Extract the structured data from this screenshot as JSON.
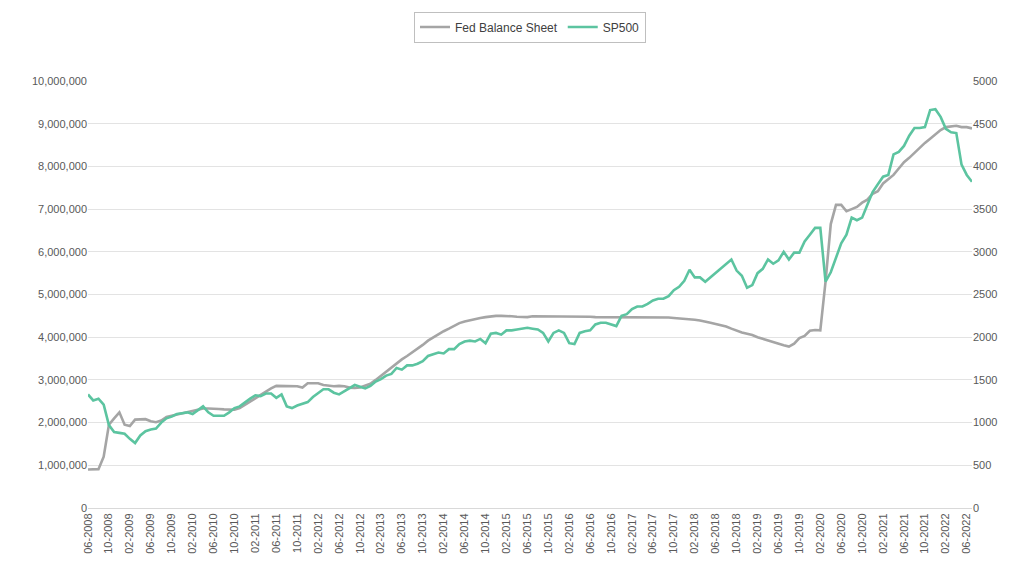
{
  "chart_data": {
    "type": "line",
    "categories": [
      "06-2008",
      null,
      null,
      null,
      "10-2008",
      null,
      null,
      null,
      "02-2009",
      null,
      null,
      null,
      "06-2009",
      null,
      null,
      null,
      "10-2009",
      null,
      null,
      null,
      "02-2010",
      null,
      null,
      null,
      "06-2010",
      null,
      null,
      null,
      "10-2010",
      null,
      null,
      null,
      "02-2011",
      null,
      null,
      null,
      "06-2011",
      null,
      null,
      null,
      "10-2011",
      null,
      null,
      null,
      "02-2012",
      null,
      null,
      null,
      "06-2012",
      null,
      null,
      null,
      "10-2012",
      null,
      null,
      null,
      "02-2013",
      null,
      null,
      null,
      "06-2013",
      null,
      null,
      null,
      "10-2013",
      null,
      null,
      null,
      "02-2014",
      null,
      null,
      null,
      "06-2014",
      null,
      null,
      null,
      "10-2014",
      null,
      null,
      null,
      "02-2015",
      null,
      null,
      null,
      "06-2015",
      null,
      null,
      null,
      "10-2015",
      null,
      null,
      null,
      "02-2016",
      null,
      null,
      null,
      "06-2016",
      null,
      null,
      null,
      "10-2016",
      null,
      null,
      null,
      "02-2017",
      null,
      null,
      null,
      "06-2017",
      null,
      null,
      null,
      "10-2017",
      null,
      null,
      null,
      "02-2018",
      null,
      null,
      null,
      "06-2018",
      null,
      null,
      null,
      "10-2018",
      null,
      null,
      null,
      "02-2019",
      null,
      null,
      null,
      "06-2019",
      null,
      null,
      null,
      "10-2019",
      null,
      null,
      null,
      "02-2020",
      null,
      null,
      null,
      "06-2020",
      null,
      null,
      null,
      "10-2020",
      null,
      null,
      null,
      "02-2021",
      null,
      null,
      null,
      "06-2021",
      null,
      null,
      null,
      "10-2021",
      null,
      null,
      null,
      "02-2022",
      null,
      null,
      null,
      "06-2022",
      null
    ],
    "series": [
      {
        "name": "Fed Balance Sheet",
        "color": "#a5a5a5",
        "values": [
          900000,
          910000,
          910000,
          1200000,
          1950000,
          2100000,
          2240000,
          1950000,
          1920000,
          2070000,
          2070000,
          2080000,
          2030000,
          2010000,
          2050000,
          2130000,
          2160000,
          2190000,
          2220000,
          2240000,
          2270000,
          2300000,
          2330000,
          2330000,
          2330000,
          2320000,
          2310000,
          2300000,
          2300000,
          2340000,
          2420000,
          2480000,
          2570000,
          2650000,
          2730000,
          2800000,
          2860000,
          2860000,
          2850000,
          2850000,
          2850000,
          2820000,
          2920000,
          2920000,
          2920000,
          2880000,
          2870000,
          2850000,
          2860000,
          2850000,
          2820000,
          2810000,
          2820000,
          2860000,
          2910000,
          3000000,
          3100000,
          3200000,
          3300000,
          3400000,
          3480000,
          3560000,
          3640000,
          3720000,
          3820000,
          3920000,
          4000000,
          4070000,
          4140000,
          4200000,
          4270000,
          4330000,
          4370000,
          4400000,
          4430000,
          4450000,
          4470000,
          4490000,
          4500000,
          4500000,
          4500000,
          4490000,
          4480000,
          4470000,
          4470000,
          4490000,
          4490000,
          4480000,
          4480000,
          4490000,
          4490000,
          4480000,
          4480000,
          4480000,
          4480000,
          4480000,
          4480000,
          4470000,
          4470000,
          4470000,
          4460000,
          4460000,
          4460000,
          4460000,
          4460000,
          4460000,
          4460000,
          4460000,
          4460000,
          4460000,
          4460000,
          4460000,
          4450000,
          4440000,
          4440000,
          4430000,
          4410000,
          4390000,
          4370000,
          4340000,
          4310000,
          4280000,
          4250000,
          4200000,
          4150000,
          4110000,
          4080000,
          4050000,
          4000000,
          3960000,
          3930000,
          3880000,
          3850000,
          3810000,
          3780000,
          3850000,
          3980000,
          4030000,
          4150000,
          4170000,
          4160000,
          5300000,
          6650000,
          7100000,
          7100000,
          6950000,
          7000000,
          7050000,
          7150000,
          7220000,
          7360000,
          7420000,
          7600000,
          7700000,
          7800000,
          7950000,
          8100000,
          8200000,
          8320000,
          8420000,
          8550000,
          8650000,
          8750000,
          8850000,
          8920000,
          8940000,
          8950000,
          8920000,
          8920000,
          8890000
        ]
      },
      {
        "name": "SP500",
        "color": "#5cc4a0",
        "axis": "y2",
        "values": [
          1330,
          1260,
          1280,
          1210,
          970,
          890,
          880,
          870,
          810,
          760,
          850,
          900,
          920,
          930,
          1000,
          1050,
          1070,
          1100,
          1110,
          1120,
          1100,
          1150,
          1190,
          1120,
          1080,
          1080,
          1080,
          1120,
          1170,
          1190,
          1240,
          1280,
          1320,
          1310,
          1340,
          1340,
          1290,
          1330,
          1190,
          1170,
          1200,
          1220,
          1240,
          1300,
          1350,
          1390,
          1390,
          1350,
          1330,
          1370,
          1400,
          1440,
          1420,
          1400,
          1430,
          1480,
          1510,
          1550,
          1570,
          1640,
          1620,
          1670,
          1670,
          1690,
          1720,
          1780,
          1800,
          1820,
          1810,
          1860,
          1860,
          1920,
          1950,
          1960,
          1950,
          1980,
          1930,
          2040,
          2050,
          2030,
          2080,
          2080,
          2090,
          2100,
          2110,
          2100,
          2090,
          2050,
          1950,
          2050,
          2080,
          2050,
          1930,
          1920,
          2050,
          2070,
          2080,
          2150,
          2170,
          2170,
          2150,
          2130,
          2250,
          2270,
          2330,
          2360,
          2360,
          2390,
          2430,
          2450,
          2450,
          2480,
          2550,
          2590,
          2660,
          2790,
          2700,
          2700,
          2650,
          2700,
          2750,
          2800,
          2860,
          2910,
          2780,
          2720,
          2580,
          2610,
          2750,
          2800,
          2910,
          2860,
          2900,
          3000,
          2910,
          2990,
          2990,
          3120,
          3200,
          3280,
          3280,
          2650,
          2760,
          2930,
          3100,
          3200,
          3400,
          3370,
          3400,
          3550,
          3700,
          3790,
          3880,
          3900,
          4140,
          4170,
          4240,
          4360,
          4450,
          4450,
          4460,
          4660,
          4670,
          4580,
          4440,
          4400,
          4390,
          4020,
          3900,
          3820
        ]
      }
    ],
    "ylim": [
      0,
      10000000
    ],
    "yticks": [
      0,
      {
        "value": 1000000,
        "label": "1,000,000"
      },
      {
        "value": 2000000,
        "label": "2,000,000"
      },
      {
        "value": 3000000,
        "label": "3,000,000"
      },
      {
        "value": 4000000,
        "label": "4,000,000"
      },
      {
        "value": 5000000,
        "label": "5,000,000"
      },
      {
        "value": 6000000,
        "label": "6,000,000"
      },
      {
        "value": 7000000,
        "label": "7,000,000"
      },
      {
        "value": 8000000,
        "label": "8,000,000"
      },
      {
        "value": 9000000,
        "label": "9,000,000"
      },
      {
        "value": 10000000,
        "label": "10,000,000"
      }
    ],
    "y2lim": [
      0,
      5000
    ],
    "y2ticks": [
      0,
      500,
      1000,
      1500,
      2000,
      2500,
      3000,
      3500,
      4000,
      4500,
      5000
    ],
    "grid": true,
    "legend": "top"
  }
}
